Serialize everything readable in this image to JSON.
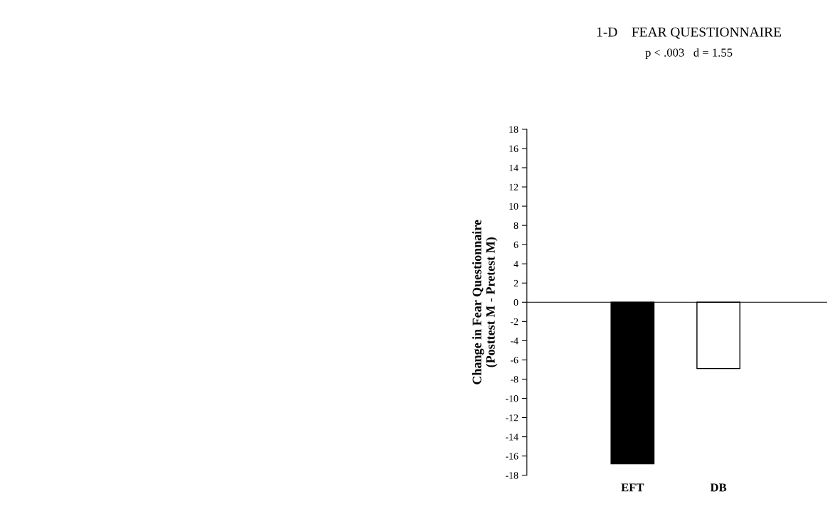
{
  "chart_data": {
    "type": "bar",
    "title": "1-D    FEAR QUESTIONNAIRE",
    "subtitle": "p < .003   d = 1.55",
    "ylabel": "Change in Fear Questionnaire\n(Posttest M - Pretest M)",
    "categories": [
      "EFT",
      "DB"
    ],
    "values": [
      -16.8,
      -6.9
    ],
    "colors": [
      "#000000",
      "#ffffff"
    ],
    "ylim": [
      -18,
      18
    ],
    "yticks": [
      -18,
      -16,
      -14,
      -12,
      -10,
      -8,
      -6,
      -4,
      -2,
      0,
      2,
      4,
      6,
      8,
      10,
      12,
      14,
      16,
      18
    ]
  }
}
